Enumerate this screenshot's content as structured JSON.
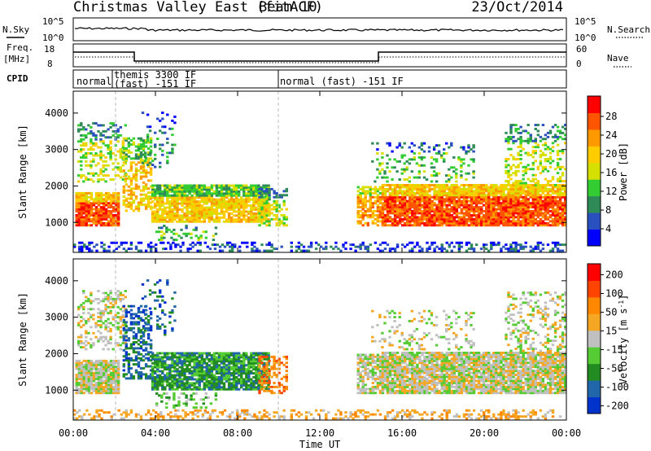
{
  "header": {
    "title": "Christmas Valley East (fitACF)",
    "beam": "Beam 10",
    "date": "23/Oct/2014"
  },
  "nsky_panel": {
    "left_label": "N.Sky",
    "right_label": "N.Search",
    "ticks": [
      "10^5",
      "10^0"
    ]
  },
  "freq_panel": {
    "left_label_line1": "Freq.",
    "left_label_line2": "[MHz]",
    "left_ticks": [
      "18",
      "8"
    ],
    "right_label": "Nave",
    "right_ticks": [
      "60",
      "0"
    ]
  },
  "cpid_panel": {
    "label": "CPID",
    "segments": [
      {
        "text_line1": "normal",
        "text_line2": "",
        "start_hour": 0
      },
      {
        "text_line1": "themis 3300 IF",
        "text_line2": "(fast) -151 IF",
        "start_hour": 1.5
      },
      {
        "text_line1": "normal (fast) -151 IF",
        "text_line2": "",
        "start_hour": 10
      }
    ]
  },
  "chart_data": [
    {
      "type": "heatmap",
      "name": "power",
      "ylabel": "Slant Range [km]",
      "yticks": [
        1000,
        2000,
        3000,
        4000
      ],
      "ylim": [
        180,
        4600
      ],
      "colorbar": {
        "label": "Power [dB]",
        "ticks": [
          "4",
          "8",
          "12",
          "16",
          "20",
          "24",
          "28"
        ],
        "colors": [
          "#0000ff",
          "#2a4fbf",
          "#2e8b57",
          "#33cc33",
          "#d6e000",
          "#ffcc00",
          "#ff9900",
          "#ff5500",
          "#ff0000"
        ]
      }
    },
    {
      "type": "heatmap",
      "name": "velocity",
      "ylabel": "Slant Range [km]",
      "yticks": [
        1000,
        2000,
        3000,
        4000
      ],
      "ylim": [
        180,
        4600
      ],
      "colorbar": {
        "label": "Velocity [m s^-1]",
        "ticks": [
          "200",
          "100",
          "50",
          "15",
          "-15",
          "-50",
          "-100",
          "-200"
        ],
        "colors": [
          "#0033cc",
          "#2266aa",
          "#228b22",
          "#55cc33",
          "#c0c0c0",
          "#f5a623",
          "#ff8800",
          "#ff4400",
          "#ff0000"
        ]
      }
    }
  ],
  "xaxis": {
    "label": "Time UT",
    "ticks": [
      "00:00",
      "04:00",
      "08:00",
      "12:00",
      "16:00",
      "20:00",
      "00:00"
    ]
  }
}
